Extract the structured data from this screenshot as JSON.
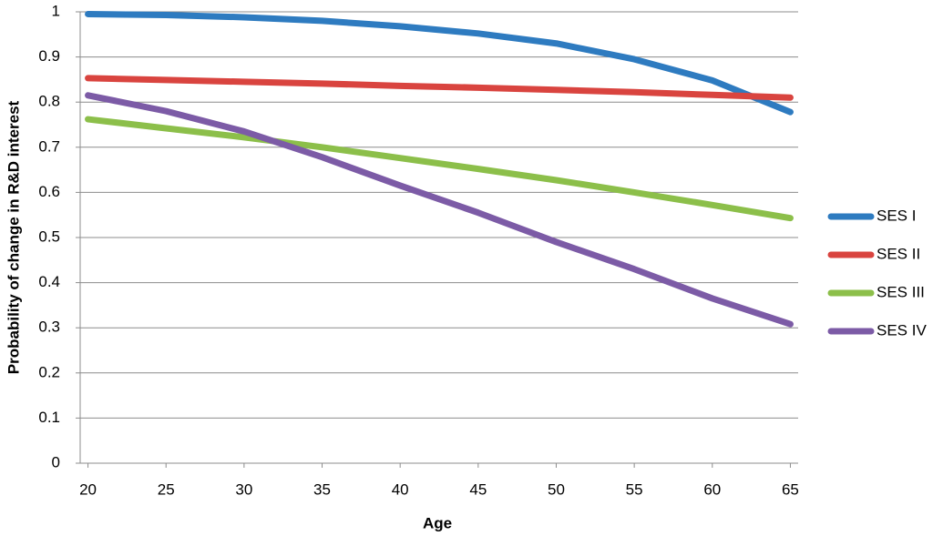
{
  "chart_data": {
    "type": "line",
    "x_label": "Age",
    "y_label": "Probability of change in R&D interest",
    "x": [
      20,
      25,
      30,
      35,
      40,
      45,
      50,
      55,
      60,
      65
    ],
    "xlim": [
      19.5,
      65.5
    ],
    "xticks": [
      20,
      25,
      30,
      35,
      40,
      45,
      50,
      55,
      60,
      65
    ],
    "ylim": [
      0,
      1
    ],
    "yticks": [
      0,
      0.1,
      0.2,
      0.3,
      0.4,
      0.5,
      0.6,
      0.7,
      0.8,
      0.9,
      1
    ],
    "grid": true,
    "legend": "right",
    "series": [
      {
        "name": "SES I",
        "color": "#2e7bc0",
        "values": [
          0.995,
          0.993,
          0.988,
          0.98,
          0.968,
          0.952,
          0.93,
          0.895,
          0.848,
          0.778
        ]
      },
      {
        "name": "SES II",
        "color": "#d9443f",
        "values": [
          0.853,
          0.849,
          0.845,
          0.841,
          0.836,
          0.832,
          0.827,
          0.822,
          0.816,
          0.81
        ]
      },
      {
        "name": "SES III",
        "color": "#8cbf4a",
        "values": [
          0.762,
          0.742,
          0.722,
          0.7,
          0.676,
          0.652,
          0.627,
          0.6,
          0.572,
          0.543
        ]
      },
      {
        "name": "SES IV",
        "color": "#7c5ba6",
        "values": [
          0.815,
          0.78,
          0.735,
          0.678,
          0.615,
          0.555,
          0.49,
          0.43,
          0.365,
          0.308
        ]
      }
    ]
  }
}
